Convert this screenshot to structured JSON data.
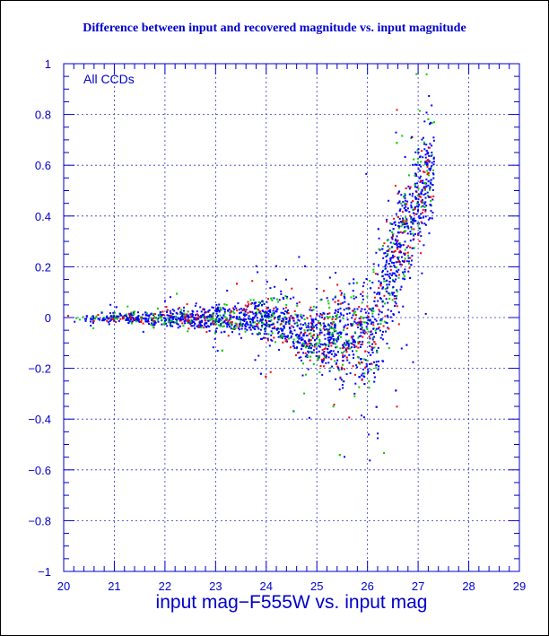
{
  "chart_data": {
    "type": "scatter",
    "title": "Difference between input and recovered magnitude vs. input magnitude",
    "xlabel": "input mag−F555W vs. input mag",
    "ylabel": "",
    "xlim": [
      20,
      29
    ],
    "ylim": [
      -1,
      1
    ],
    "x_ticks": [
      20,
      21,
      22,
      23,
      24,
      25,
      26,
      27,
      28,
      29
    ],
    "y_ticks": [
      -1,
      -0.8,
      -0.6,
      -0.4,
      -0.2,
      0,
      0.2,
      0.4,
      0.6,
      0.8,
      1
    ],
    "x_tick_labels": [
      "20",
      "21",
      "22",
      "23",
      "24",
      "25",
      "26",
      "27",
      "28",
      "29"
    ],
    "y_tick_labels": [
      "−1",
      "−0.8",
      "−0.6",
      "−0.4",
      "−0.2",
      "0",
      "0.2",
      "0.4",
      "0.6",
      "0.8",
      "1"
    ],
    "grid": true,
    "grid_style": "dashed",
    "annotation": "All CCDs",
    "series_colors": [
      "#0000ff",
      "#00cc00",
      "#ff0000"
    ],
    "envelope": {
      "x": [
        20,
        21,
        22,
        23,
        24,
        25,
        25.5,
        26,
        26.3,
        26.6,
        27,
        27.4
      ],
      "upper": [
        0.02,
        0.035,
        0.06,
        0.09,
        0.14,
        0.22,
        0.3,
        0.4,
        0.5,
        0.65,
        0.9,
        1.0
      ],
      "lower": [
        -0.02,
        -0.035,
        -0.06,
        -0.09,
        -0.15,
        -0.25,
        -0.35,
        -0.45,
        -0.3,
        -0.1,
        0.1,
        0.3
      ]
    }
  },
  "colors": {
    "title": "#0000cc",
    "axis": "#0000cc",
    "grid": "#3333cc",
    "background": "#ffffff"
  }
}
